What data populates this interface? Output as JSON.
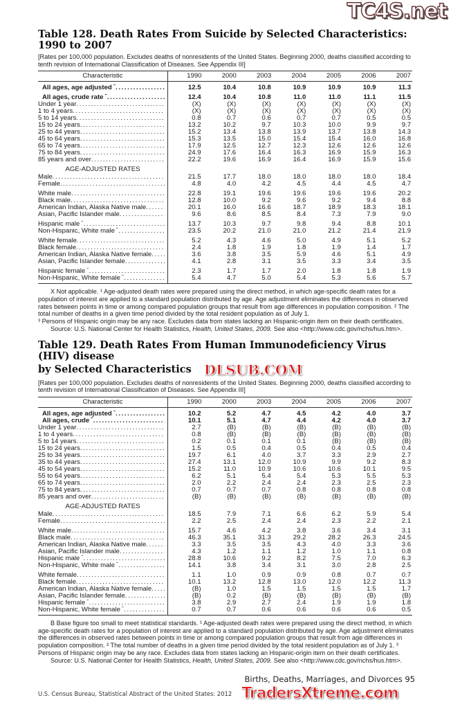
{
  "watermarks": {
    "top": "TC4S.net",
    "middle": "DLSUB.COM",
    "bottom": "TradersXtreme.com"
  },
  "tables": [
    {
      "title_line1": "Table 128. Death Rates From Suicide by Selected Characteristics:",
      "title_line2": "1990 to 2007",
      "headnote": "[Rates per 100,000 population. Excludes deaths of nonresidents of the United States. Beginning 2000, deaths classified according to tenth revision of International Classification of Diseases. See Appendix III]",
      "columns": [
        "Characteristic",
        "1990",
        "2000",
        "2003",
        "2004",
        "2005",
        "2006",
        "2007"
      ],
      "rows": [
        {
          "label": "All ages, age adjusted",
          "sup": "1",
          "bold": true,
          "values": [
            "12.5",
            "10.4",
            "10.8",
            "10.9",
            "10.9",
            "10.9",
            "11.3"
          ]
        },
        {
          "label": "All ages, crude rate",
          "sup": "2",
          "bold": true,
          "gap": true,
          "values": [
            "12.4",
            "10.4",
            "10.8",
            "11.0",
            "11.0",
            "11.1",
            "11.5"
          ]
        },
        {
          "label": "Under 1 year",
          "values": [
            "(X)",
            "(X)",
            "(X)",
            "(X)",
            "(X)",
            "(X)",
            "(X)"
          ]
        },
        {
          "label": "1 to 4 years",
          "values": [
            "(X)",
            "(X)",
            "(X)",
            "(X)",
            "(X)",
            "(X)",
            "(X)"
          ]
        },
        {
          "label": "5 to 14 years",
          "values": [
            "0.8",
            "0.7",
            "0.6",
            "0.7",
            "0.7",
            "0.5",
            "0.5"
          ]
        },
        {
          "label": "15 to 24 years",
          "values": [
            "13.2",
            "10.2",
            "9.7",
            "10.3",
            "10.0",
            "9.9",
            "9.7"
          ]
        },
        {
          "label": "25 to 44 years",
          "values": [
            "15.2",
            "13.4",
            "13.8",
            "13.9",
            "13.7",
            "13.8",
            "14.3"
          ]
        },
        {
          "label": "45 to 64 years",
          "values": [
            "15.3",
            "13.5",
            "15.0",
            "15.4",
            "15.4",
            "16.0",
            "16.8"
          ]
        },
        {
          "label": "65 to 74 years",
          "values": [
            "17.9",
            "12.5",
            "12.7",
            "12.3",
            "12.6",
            "12.6",
            "12.6"
          ]
        },
        {
          "label": "75 to 84 years",
          "values": [
            "24.9",
            "17.6",
            "16.4",
            "16.3",
            "16.9",
            "15.9",
            "16.3"
          ]
        },
        {
          "label": "85 years and over",
          "values": [
            "22.2",
            "19.6",
            "16.9",
            "16.4",
            "16.9",
            "15.9",
            "15.6"
          ]
        },
        {
          "section": "AGE-ADJUSTED RATES"
        },
        {
          "label": "Male",
          "values": [
            "21.5",
            "17.7",
            "18.0",
            "18.0",
            "18.0",
            "18.0",
            "18.4"
          ]
        },
        {
          "label": "Female",
          "values": [
            "4.8",
            "4.0",
            "4.2",
            "4.5",
            "4.4",
            "4.5",
            "4.7"
          ]
        },
        {
          "label": "White male",
          "gap": true,
          "values": [
            "22.8",
            "19.1",
            "19.6",
            "19.6",
            "19.6",
            "19.6",
            "20.2"
          ]
        },
        {
          "label": "Black male",
          "values": [
            "12.8",
            "10.0",
            "9.2",
            "9.6",
            "9.2",
            "9.4",
            "8.8"
          ]
        },
        {
          "label": "American Indian, Alaska Native male",
          "values": [
            "20.1",
            "16.0",
            "16.6",
            "18.7",
            "18.9",
            "18.3",
            "18.1"
          ]
        },
        {
          "label": "Asian, Pacific Islander male",
          "values": [
            "9.6",
            "8.6",
            "8.5",
            "8.4",
            "7.3",
            "7.9",
            "9.0"
          ]
        },
        {
          "label": "Hispanic male",
          "sup": "3",
          "gap": true,
          "values": [
            "13.7",
            "10.3",
            "9.7",
            "9.8",
            "9.4",
            "8.8",
            "10.1"
          ]
        },
        {
          "label": "Non-Hispanic, White male",
          "sup": "3",
          "values": [
            "23.5",
            "20.2",
            "21.0",
            "21.0",
            "21.2",
            "21.4",
            "21.9"
          ]
        },
        {
          "label": "White female",
          "gap": true,
          "values": [
            "5.2",
            "4.3",
            "4.6",
            "5.0",
            "4.9",
            "5.1",
            "5.2"
          ]
        },
        {
          "label": "Black female",
          "values": [
            "2.4",
            "1.8",
            "1.9",
            "1.8",
            "1.9",
            "1.4",
            "1.7"
          ]
        },
        {
          "label": "American Indian, Alaska Native female",
          "values": [
            "3.6",
            "3.8",
            "3.5",
            "5.9",
            "4.6",
            "5.1",
            "4.9"
          ]
        },
        {
          "label": "Asian, Pacific Islander female",
          "values": [
            "4.1",
            "2.8",
            "3.1",
            "3.5",
            "3.3",
            "3.4",
            "3.5"
          ]
        },
        {
          "label": "Hispanic female",
          "sup": "3",
          "gap": true,
          "values": [
            "2.3",
            "1.7",
            "1.7",
            "2.0",
            "1.8",
            "1.8",
            "1.9"
          ]
        },
        {
          "label": "Non-Hispanic, White female",
          "sup": "3",
          "values": [
            "5.4",
            "4.7",
            "5.0",
            "5.4",
            "5.3",
            "5.6",
            "5.7"
          ]
        }
      ],
      "footnotes": "X Not applicable. ¹ Age-adjusted death rates were prepared using the direct method, in which age-specific death rates for a population of interest are applied to a standard population distributed by age. Age adjustment eliminates the differences in observed rates between points in time or among compared population groups that result from age differences in population composition. ² The total number of deaths in a given time period divided by the total resident population as of July 1.",
      "footnote3": "³ Persons of Hispanic origin may be any race. Excludes data from states lacking an Hispanic-origin item on their death certificates.",
      "source_prefix": "Source: U.S. National Center for Health Statistics, ",
      "source_italic": "Health, United States, 2009.",
      "source_suffix": " See also <http://www.cdc.gov/nchs/hus.htm>."
    },
    {
      "title_line1": "Table 129. Death Rates From Human Immunodeficiency Virus (HIV) disease",
      "title_line2": "by Selected Characteristics",
      "headnote": "[Rates per 100,000 population. Excludes deaths of nonresidents of the United States. Beginning 2000, deaths classified according to tenth revision of International Classification of Diseases. See Appendix III]",
      "columns": [
        "Characteristic",
        "1990",
        "2000",
        "2003",
        "2004",
        "2005",
        "2006",
        "2007"
      ],
      "rows": [
        {
          "label": "All ages, age adjusted",
          "sup": "1",
          "bold": true,
          "values": [
            "10.2",
            "5.2",
            "4.7",
            "4.5",
            "4.2",
            "4.0",
            "3.7"
          ]
        },
        {
          "label": "All ages, crude",
          "sup": "2",
          "bold": true,
          "values": [
            "10.1",
            "5.1",
            "4.7",
            "4.4",
            "4.2",
            "4.0",
            "3.7"
          ]
        },
        {
          "label": "Under 1 year",
          "values": [
            "2.7",
            "(B)",
            "(B)",
            "(B)",
            "(B)",
            "(B)",
            "(B)"
          ]
        },
        {
          "label": "1 to 4 years",
          "values": [
            "0.8",
            "(B)",
            "(B)",
            "(B)",
            "(B)",
            "(B)",
            "(B)"
          ]
        },
        {
          "label": "5 to 14 years",
          "values": [
            "0.2",
            "0.1",
            "0.1",
            "0.1",
            "(B)",
            "(B)",
            "(B)"
          ]
        },
        {
          "label": "15 to 24 years",
          "values": [
            "1.5",
            "0.5",
            "0.4",
            "0.5",
            "0.4",
            "0.5",
            "0.4"
          ]
        },
        {
          "label": "25 to 34 years",
          "values": [
            "19.7",
            "6.1",
            "4.0",
            "3.7",
            "3.3",
            "2.9",
            "2.7"
          ]
        },
        {
          "label": "35 to 44 years",
          "values": [
            "27.4",
            "13.1",
            "12.0",
            "10.9",
            "9.9",
            "9.2",
            "8.3"
          ]
        },
        {
          "label": "45 to 54 years",
          "values": [
            "15.2",
            "11.0",
            "10.9",
            "10.6",
            "10.6",
            "10.1",
            "9.5"
          ]
        },
        {
          "label": "55 to 64 years",
          "values": [
            "6.2",
            "5.1",
            "5.4",
            "5.4",
            "5.3",
            "5.5",
            "5.3"
          ]
        },
        {
          "label": "65 to 74 years",
          "values": [
            "2.0",
            "2.2",
            "2.4",
            "2.4",
            "2.3",
            "2.5",
            "2.3"
          ]
        },
        {
          "label": "75 to 84 years",
          "values": [
            "0.7",
            "0.7",
            "0.7",
            "0.8",
            "0.8",
            "0.8",
            "0.8"
          ]
        },
        {
          "label": "85 years and over",
          "values": [
            "(B)",
            "(B)",
            "(B)",
            "(B)",
            "(B)",
            "(B)",
            "(B)"
          ]
        },
        {
          "section": "AGE-ADJUSTED RATES"
        },
        {
          "label": "Male",
          "values": [
            "18.5",
            "7.9",
            "7.1",
            "6.6",
            "6.2",
            "5.9",
            "5.4"
          ]
        },
        {
          "label": "Female",
          "values": [
            "2.2",
            "2.5",
            "2.4",
            "2.4",
            "2.3",
            "2.2",
            "2.1"
          ]
        },
        {
          "label": "White male",
          "gap": true,
          "values": [
            "15.7",
            "4.6",
            "4.2",
            "3.8",
            "3.6",
            "3.4",
            "3.1"
          ]
        },
        {
          "label": "Black male",
          "values": [
            "46.3",
            "35.1",
            "31.3",
            "29.2",
            "28.2",
            "26.3",
            "24.5"
          ]
        },
        {
          "label": "American Indian, Alaska Native male",
          "values": [
            "3.3",
            "3.5",
            "3.5",
            "4.3",
            "4.0",
            "3.3",
            "3.6"
          ]
        },
        {
          "label": "Asian, Pacific Islander male",
          "values": [
            "4.3",
            "1.2",
            "1.1",
            "1.2",
            "1.0",
            "1.1",
            "0.8"
          ]
        },
        {
          "label": "Hispanic male",
          "sup": "3",
          "values": [
            "28.8",
            "10.6",
            "9.2",
            "8.2",
            "7.5",
            "7.0",
            "6.3"
          ]
        },
        {
          "label": "Non-Hispanic, White male",
          "sup": "3",
          "values": [
            "14.1",
            "3.8",
            "3.4",
            "3.1",
            "3.0",
            "2.8",
            "2.5"
          ]
        },
        {
          "label": "White female",
          "gap": true,
          "values": [
            "1.1",
            "1.0",
            "0.9",
            "0.9",
            "0.8",
            "0.7",
            "0.7"
          ]
        },
        {
          "label": "Black female",
          "values": [
            "10.1",
            "13.2",
            "12.8",
            "13.0",
            "12.0",
            "12.2",
            "11.3"
          ]
        },
        {
          "label": "American Indian, Alaska Native female",
          "values": [
            "(B)",
            "1.0",
            "1.5",
            "1.5",
            "1.5",
            "1.5",
            "1.7"
          ]
        },
        {
          "label": "Asian, Pacific Islander female",
          "values": [
            "(B)",
            "0.2",
            "(B)",
            "(B)",
            "(B)",
            "(B)",
            "(B)"
          ]
        },
        {
          "label": "Hispanic female",
          "sup": "3",
          "values": [
            "3.8",
            "2.9",
            "2.7",
            "2.4",
            "1.9",
            "1.9",
            "1.8"
          ]
        },
        {
          "label": "Non-Hispanic, White female",
          "sup": "3",
          "values": [
            "0.7",
            "0.7",
            "0.6",
            "0.6",
            "0.6",
            "0.6",
            "0.5"
          ]
        }
      ],
      "footnotes": "B Base figure too small to meet statistical standards. ¹ Age-adjusted death rates were prepared using the direct method, in which age-specific death rates for a population of interest are applied to a standard population distributed by age. Age adjustment eliminates the differences in observed rates between points in time or among compared population groups that result from age differences in population composition. ² The total number of deaths in a given time period divided by the total resident population as of July 1. ³ Persons of Hispanic origin may be any race. Excludes data from states lacking an Hispanic-origin item on their death certificates.",
      "source_prefix": "Source: U.S. National Center for Health Statistics, ",
      "source_italic": "Health, United States, 2009.",
      "source_suffix": " See also <http://www.cdc.gov/nchs/hus.htm>."
    }
  ],
  "page_header": "Births, Deaths, Marriages, and Divorces  95",
  "page_footer": "U.S. Census Bureau, Statistical Abstract of the United States: 2012"
}
